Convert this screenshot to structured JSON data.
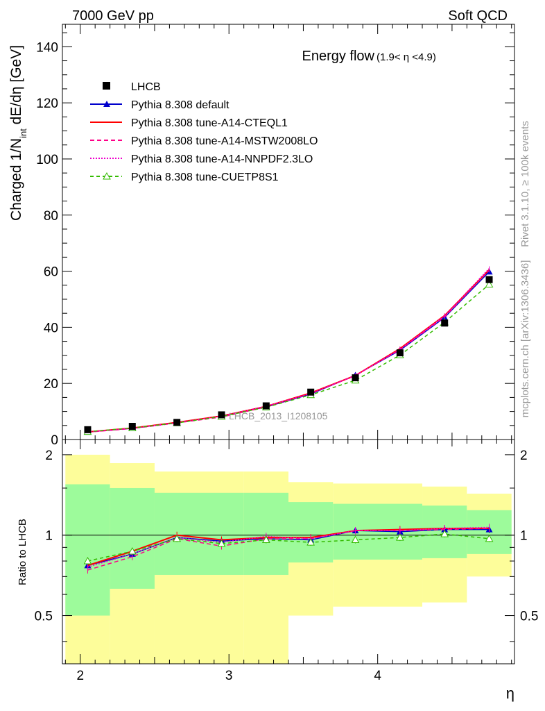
{
  "header": {
    "left": "7000 GeV pp",
    "right": "Soft QCD"
  },
  "side": {
    "rivet": "Rivet 3.1.10, ≥ 100k events",
    "mcplots": "mcplots.cern.ch [arXiv:1306.3436]"
  },
  "chart_data": [
    {
      "type": "line",
      "title": "Energy flow",
      "title_sub": "(1.9< η <4.9)",
      "ylabel_main": "Charged 1/N",
      "ylabel_sub": "int",
      "ylabel_tail": " dE/dη [GeV]",
      "xlim": [
        1.88,
        4.92
      ],
      "ylim": [
        0,
        148
      ],
      "yticks": [
        0,
        20,
        40,
        60,
        80,
        100,
        120,
        140
      ],
      "yticklabels": [
        "0",
        "20",
        "40",
        "60",
        "80",
        "100",
        "120",
        "140"
      ],
      "watermark": "LHCB_2013_I1208105",
      "x": [
        2.05,
        2.35,
        2.65,
        2.95,
        3.25,
        3.55,
        3.85,
        4.15,
        4.45,
        4.75
      ],
      "data": {
        "name": "LHCB",
        "values": [
          3.5,
          4.7,
          6.1,
          8.8,
          12.0,
          16.9,
          22.0,
          30.9,
          41.5,
          57.0
        ],
        "colors": {
          "ink": "#000000"
        }
      },
      "series": [
        {
          "name": "Pythia 8.308 default",
          "color": "#0000cc",
          "dash": "",
          "marker": "triangle",
          "values": [
            2.7,
            4.0,
            6.0,
            8.4,
            11.6,
            16.2,
            22.9,
            31.8,
            43.5,
            59.8
          ]
        },
        {
          "name": "Pythia 8.308 tune-A14-CTEQL1",
          "color": "#ff0000",
          "dash": "",
          "marker": "none",
          "values": [
            2.7,
            4.1,
            6.1,
            8.4,
            11.8,
            16.6,
            22.8,
            32.4,
            44.2,
            60.5
          ]
        },
        {
          "name": "Pythia 8.308 tune-A14-MSTW2008LO",
          "color": "#ff0088",
          "dash": "6,4",
          "marker": "none",
          "values": [
            2.6,
            3.9,
            5.9,
            8.0,
            11.6,
            16.4,
            22.8,
            32.0,
            43.7,
            60.3
          ]
        },
        {
          "name": "Pythia 8.308 tune-A14-NNPDF2.3LO",
          "color": "#ee00cc",
          "dash": "2,2",
          "marker": "none",
          "values": [
            2.7,
            4.0,
            6.0,
            8.3,
            11.9,
            16.4,
            22.8,
            32.2,
            44.1,
            61.0
          ]
        },
        {
          "name": "Pythia 8.308 tune-CUETP8S1",
          "color": "#33bb00",
          "dash": "5,4",
          "marker": "open-triangle",
          "values": [
            2.8,
            4.1,
            5.9,
            8.2,
            11.5,
            15.9,
            21.1,
            30.1,
            41.8,
            55.3
          ]
        }
      ]
    },
    {
      "type": "line",
      "ylabel": "Ratio to LHCB",
      "xlabel": "η",
      "xlim": [
        1.88,
        4.92
      ],
      "ylim": [
        0.33,
        2.28
      ],
      "yscale": "log",
      "yticks": [
        0.5,
        1,
        2
      ],
      "yticklabels": [
        "0.5",
        "1",
        "2"
      ],
      "xticks": [
        2,
        3,
        4
      ],
      "xticklabels": [
        "2",
        "3",
        "4"
      ],
      "bands": {
        "edges": [
          1.9,
          2.2,
          2.5,
          3.1,
          3.4,
          3.7,
          4.3,
          4.6,
          4.9
        ],
        "inner_lo": [
          0.5,
          0.63,
          0.71,
          0.71,
          0.79,
          0.81,
          0.82,
          0.85,
          0.87
        ],
        "inner_hi": [
          1.55,
          1.5,
          1.44,
          1.44,
          1.33,
          1.31,
          1.29,
          1.24,
          1.21
        ],
        "outer_lo": [
          0.3,
          0.3,
          0.3,
          0.3,
          0.5,
          0.54,
          0.56,
          0.7,
          0.73
        ],
        "outer_hi": [
          2.0,
          1.86,
          1.73,
          1.73,
          1.58,
          1.56,
          1.52,
          1.43,
          1.4
        ],
        "colors": {
          "inner": "#9dfb9b",
          "outer": "#fdfd9a"
        }
      },
      "series": [
        {
          "name": "Pythia 8.308 default",
          "values": [
            0.77,
            0.85,
            0.98,
            0.95,
            0.97,
            0.96,
            1.04,
            1.03,
            1.05,
            1.05
          ]
        },
        {
          "name": "Pythia 8.308 tune-A14-CTEQL1",
          "values": [
            0.77,
            0.87,
            1.0,
            0.96,
            0.98,
            0.98,
            1.04,
            1.05,
            1.06,
            1.06
          ]
        },
        {
          "name": "Pythia 8.308 tune-A14-MSTW2008LO",
          "values": [
            0.74,
            0.83,
            0.97,
            0.91,
            0.97,
            0.97,
            1.04,
            1.04,
            1.05,
            1.06
          ]
        },
        {
          "name": "Pythia 8.308 tune-A14-NNPDF2.3LO",
          "values": [
            0.76,
            0.85,
            0.98,
            0.94,
            0.99,
            0.97,
            1.04,
            1.04,
            1.06,
            1.07
          ]
        },
        {
          "name": "Pythia 8.308 tune-CUETP8S1",
          "values": [
            0.8,
            0.87,
            0.97,
            0.93,
            0.96,
            0.94,
            0.96,
            0.98,
            1.01,
            0.97
          ]
        }
      ]
    }
  ]
}
